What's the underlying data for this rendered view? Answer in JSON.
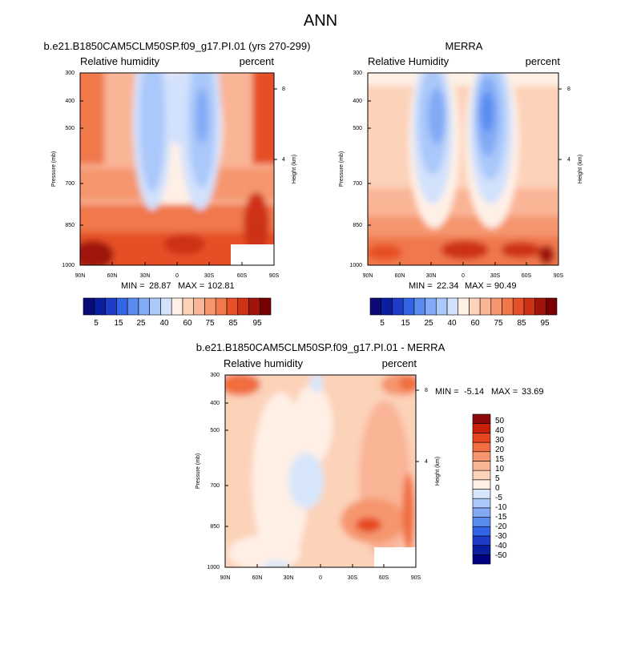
{
  "page_title": "ANN",
  "chart_data": [
    {
      "type": "heatmap",
      "title": "b.e21.B1850CAM5CLM50SP.f09_g17.PI.01 (yrs 270-299)",
      "variable": "Relative humidity",
      "units": "percent",
      "xlabel": "",
      "ylabel": "Pressure (mb)",
      "ylabel_right": "Height (km)",
      "x_ticks": [
        "90N",
        "60N",
        "30N",
        "0",
        "30S",
        "60S",
        "90S"
      ],
      "y_ticks": [
        "300",
        "400",
        "500",
        "700",
        "850",
        "1000"
      ],
      "height_ticks": [
        "8",
        "4"
      ],
      "min_label": "MIN =",
      "min": "28.87",
      "max_label": "MAX =",
      "max": "102.81",
      "colorbar": {
        "labels": [
          "5",
          "15",
          "25",
          "40",
          "60",
          "75",
          "85",
          "95"
        ],
        "colors": [
          "#0a0a78",
          "#0a1ea0",
          "#1e3cc8",
          "#3264e6",
          "#5a8cf0",
          "#82aaf5",
          "#aac8fa",
          "#d2e1fc",
          "#fff0e6",
          "#fcd2b9",
          "#fab496",
          "#f5966e",
          "#f0784b",
          "#e65028",
          "#cd3214",
          "#a0140a",
          "#780000"
        ]
      }
    },
    {
      "type": "heatmap",
      "title": "MERRA",
      "variable": "Relative Humidity",
      "units": "percent",
      "xlabel": "",
      "ylabel": "Pressure (mb)",
      "ylabel_right": "Height (km)",
      "x_ticks": [
        "90N",
        "60N",
        "30N",
        "0",
        "30S",
        "60S",
        "90S"
      ],
      "y_ticks": [
        "300",
        "400",
        "500",
        "700",
        "850",
        "1000"
      ],
      "height_ticks": [
        "8",
        "4"
      ],
      "min_label": "MIN =",
      "min": "22.34",
      "max_label": "MAX =",
      "max": "90.49",
      "colorbar": {
        "labels": [
          "5",
          "15",
          "25",
          "40",
          "60",
          "75",
          "85",
          "95"
        ],
        "colors": [
          "#0a0a78",
          "#0a1ea0",
          "#1e3cc8",
          "#3264e6",
          "#5a8cf0",
          "#82aaf5",
          "#aac8fa",
          "#d2e1fc",
          "#fff0e6",
          "#fcd2b9",
          "#fab496",
          "#f5966e",
          "#f0784b",
          "#e65028",
          "#cd3214",
          "#a0140a",
          "#780000"
        ]
      }
    },
    {
      "type": "heatmap",
      "title": "b.e21.B1850CAM5CLM50SP.f09_g17.PI.01 - MERRA",
      "variable": "Relative humidity",
      "units": "percent",
      "xlabel": "",
      "ylabel": "Pressure (mb)",
      "ylabel_right": "Height (km)",
      "x_ticks": [
        "90N",
        "60N",
        "30N",
        "0",
        "30S",
        "60S",
        "90S"
      ],
      "y_ticks": [
        "300",
        "400",
        "500",
        "700",
        "850",
        "1000"
      ],
      "height_ticks": [
        "8",
        "4"
      ],
      "min_label": "MIN =",
      "min": "-5.14",
      "max_label": "MAX =",
      "max": "33.69",
      "colorbar": {
        "labels": [
          "50",
          "40",
          "30",
          "20",
          "15",
          "10",
          "5",
          "0",
          "-5",
          "-10",
          "-15",
          "-20",
          "-30",
          "-40",
          "-50"
        ],
        "colors": [
          "#8c0a0a",
          "#c81e0a",
          "#e6461e",
          "#f06e41",
          "#f5966e",
          "#fab496",
          "#fcd2b9",
          "#fff0e6",
          "#d7e6fa",
          "#aac8fa",
          "#82aaf5",
          "#5a8cf0",
          "#3264e6",
          "#1e3cc8",
          "#0a1ea0",
          "#000080"
        ]
      }
    }
  ]
}
